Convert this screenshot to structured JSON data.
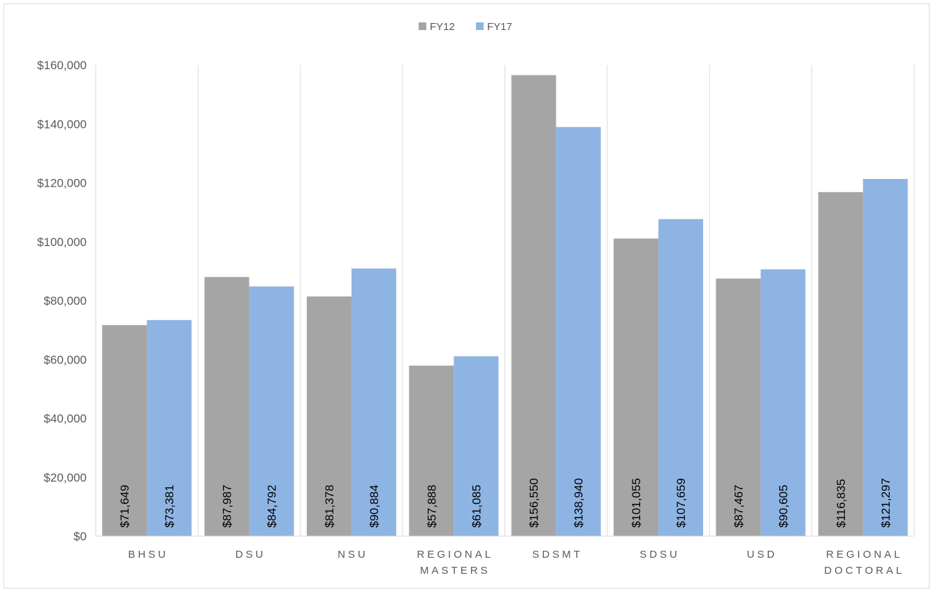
{
  "chart_data": {
    "type": "bar",
    "title": "",
    "xlabel": "",
    "ylabel": "",
    "ylim": [
      0,
      160000
    ],
    "yticks": [
      0,
      20000,
      40000,
      60000,
      80000,
      100000,
      120000,
      140000,
      160000
    ],
    "ytick_labels": [
      "$0",
      "$20,000",
      "$40,000",
      "$60,000",
      "$80,000",
      "$100,000",
      "$120,000",
      "$140,000",
      "$160,000"
    ],
    "categories": [
      [
        "BHSU"
      ],
      [
        "DSU"
      ],
      [
        "NSU"
      ],
      [
        "REGIONAL",
        "MASTERS"
      ],
      [
        "SDSMT"
      ],
      [
        "SDSU"
      ],
      [
        "USD"
      ],
      [
        "REGIONAL",
        "DOCTORAL"
      ]
    ],
    "series": [
      {
        "name": "FY12",
        "color": "#a5a5a5",
        "values": [
          71649,
          87987,
          81378,
          57888,
          156550,
          101055,
          87467,
          116835
        ],
        "labels": [
          "$71,649",
          "$87,987",
          "$81,378",
          "$57,888",
          "$156,550",
          "$101,055",
          "$87,467",
          "$116,835"
        ]
      },
      {
        "name": "FY17",
        "color": "#8eb4e3",
        "values": [
          73381,
          84792,
          90884,
          61085,
          138940,
          107659,
          90605,
          121297
        ],
        "labels": [
          "$73,381",
          "$84,792",
          "$90,884",
          "$61,085",
          "$138,940",
          "$107,659",
          "$90,605",
          "$121,297"
        ]
      }
    ],
    "legend_position": "top-center",
    "grid": "vertical-separators"
  }
}
